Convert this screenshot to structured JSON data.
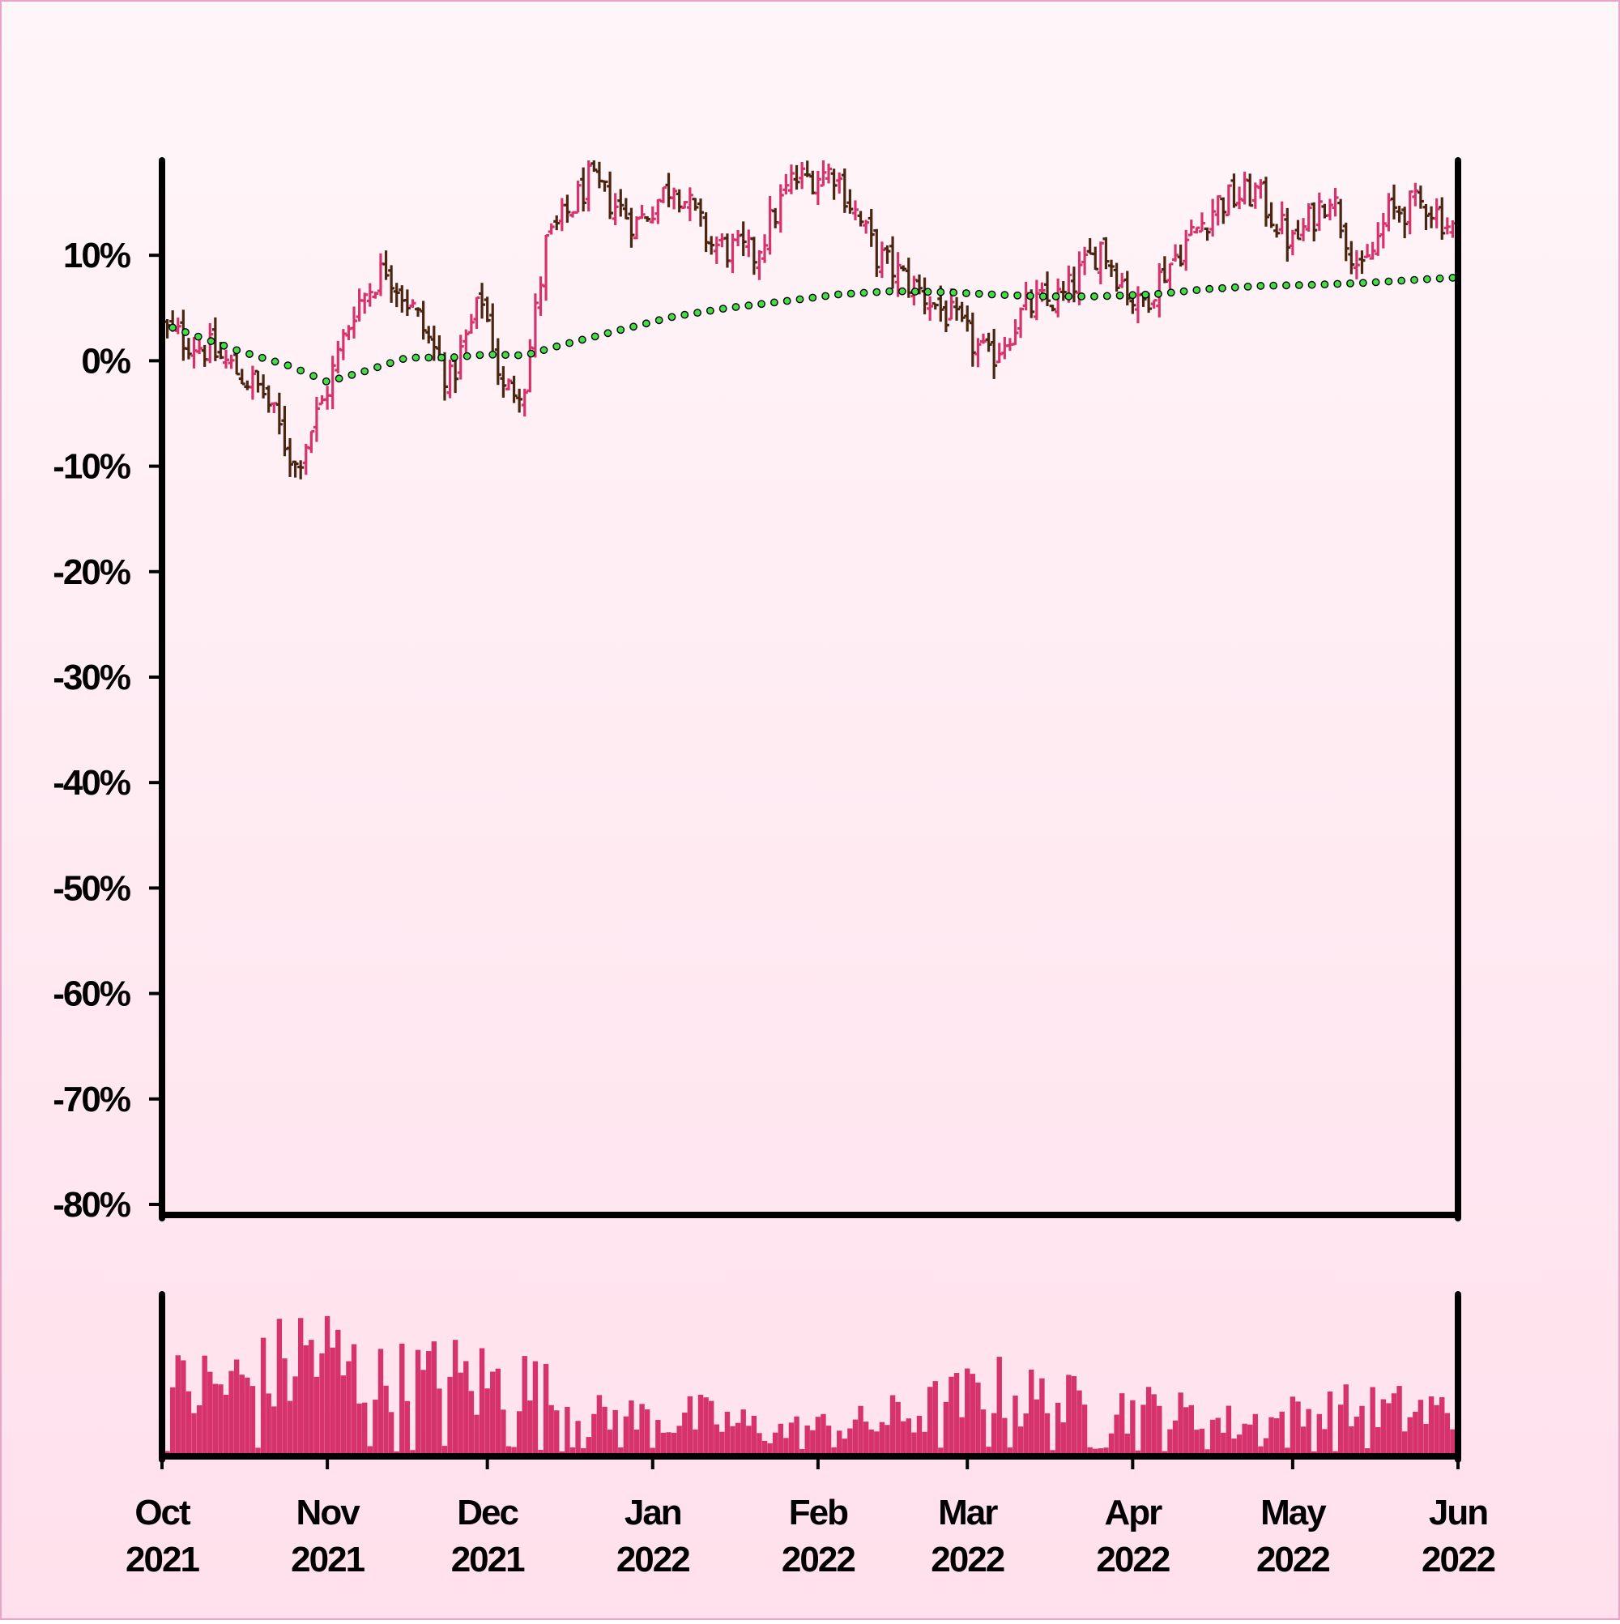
{
  "chart_data": {
    "type": "ohlc",
    "title": "",
    "xlabel": "",
    "ylabel": "",
    "price_panel": {
      "ylim": [
        -81,
        19
      ],
      "yticks": [
        {
          "value": 10,
          "label": "10%"
        },
        {
          "value": 0,
          "label": "0%"
        },
        {
          "value": -10,
          "label": "-10%"
        },
        {
          "value": -20,
          "label": "-20%"
        },
        {
          "value": -30,
          "label": "-30%"
        },
        {
          "value": -40,
          "label": "-40%"
        },
        {
          "value": -50,
          "label": "-50%"
        },
        {
          "value": -60,
          "label": "-60%"
        },
        {
          "value": -70,
          "label": "-70%"
        },
        {
          "value": -80,
          "label": "-80%"
        }
      ],
      "closes": [
        {
          "date": "2021-10-01",
          "close": 3.0
        },
        {
          "date": "2021-10-10",
          "close": 1.0
        },
        {
          "date": "2021-10-20",
          "close": -3.0
        },
        {
          "date": "2021-10-26",
          "close": -10.0
        },
        {
          "date": "2021-10-31",
          "close": -4.0
        },
        {
          "date": "2021-11-06",
          "close": 5.0
        },
        {
          "date": "2021-11-12",
          "close": 9.0
        },
        {
          "date": "2021-11-18",
          "close": 4.0
        },
        {
          "date": "2021-11-24",
          "close": -2.0
        },
        {
          "date": "2021-11-30",
          "close": 6.0
        },
        {
          "date": "2021-12-04",
          "close": -3.0
        },
        {
          "date": "2021-12-08",
          "close": -2.0
        },
        {
          "date": "2021-12-12",
          "close": 11.0
        },
        {
          "date": "2021-12-20",
          "close": 17.0
        },
        {
          "date": "2021-12-29",
          "close": 13.0
        },
        {
          "date": "2022-01-05",
          "close": 17.0
        },
        {
          "date": "2022-01-12",
          "close": 11.0
        },
        {
          "date": "2022-01-20",
          "close": 10.0
        },
        {
          "date": "2022-01-27",
          "close": 17.0
        },
        {
          "date": "2022-02-04",
          "close": 18.0
        },
        {
          "date": "2022-02-12",
          "close": 10.0
        },
        {
          "date": "2022-02-19",
          "close": 7.0
        },
        {
          "date": "2022-02-26",
          "close": 4.0
        },
        {
          "date": "2022-03-05",
          "close": 0.0
        },
        {
          "date": "2022-03-12",
          "close": 5.0
        },
        {
          "date": "2022-03-19",
          "close": 6.0
        },
        {
          "date": "2022-03-26",
          "close": 11.0
        },
        {
          "date": "2022-04-02",
          "close": 5.0
        },
        {
          "date": "2022-04-09",
          "close": 10.0
        },
        {
          "date": "2022-04-17",
          "close": 15.0
        },
        {
          "date": "2022-04-24",
          "close": 16.0
        },
        {
          "date": "2022-05-01",
          "close": 11.0
        },
        {
          "date": "2022-05-08",
          "close": 16.0
        },
        {
          "date": "2022-05-14",
          "close": 8.0
        },
        {
          "date": "2022-05-19",
          "close": 14.0
        },
        {
          "date": "2022-05-26",
          "close": 15.0
        },
        {
          "date": "2022-06-01",
          "close": 12.0
        }
      ],
      "moving_average": [
        {
          "date": "2021-10-01",
          "value": 3.5
        },
        {
          "date": "2021-10-15",
          "value": 1.0
        },
        {
          "date": "2021-10-25",
          "value": -0.5
        },
        {
          "date": "2021-11-01",
          "value": -2.0
        },
        {
          "date": "2021-11-08",
          "value": -1.0
        },
        {
          "date": "2021-11-16",
          "value": 0.3
        },
        {
          "date": "2021-11-24",
          "value": 0.3
        },
        {
          "date": "2021-12-01",
          "value": 0.6
        },
        {
          "date": "2021-12-08",
          "value": 0.5
        },
        {
          "date": "2021-12-15",
          "value": 1.5
        },
        {
          "date": "2021-12-25",
          "value": 2.8
        },
        {
          "date": "2022-01-05",
          "value": 4.2
        },
        {
          "date": "2022-01-15",
          "value": 5.0
        },
        {
          "date": "2022-01-25",
          "value": 5.6
        },
        {
          "date": "2022-02-05",
          "value": 6.3
        },
        {
          "date": "2022-02-15",
          "value": 6.6
        },
        {
          "date": "2022-02-25",
          "value": 6.5
        },
        {
          "date": "2022-03-05",
          "value": 6.3
        },
        {
          "date": "2022-03-15",
          "value": 6.1
        },
        {
          "date": "2022-03-25",
          "value": 6.1
        },
        {
          "date": "2022-04-05",
          "value": 6.3
        },
        {
          "date": "2022-04-15",
          "value": 6.8
        },
        {
          "date": "2022-04-25",
          "value": 7.1
        },
        {
          "date": "2022-05-05",
          "value": 7.2
        },
        {
          "date": "2022-05-15",
          "value": 7.4
        },
        {
          "date": "2022-05-25",
          "value": 7.7
        },
        {
          "date": "2022-06-01",
          "value": 7.9
        }
      ]
    },
    "volume_panel": {
      "note_levels": "relative volume 0-1",
      "profile": [
        {
          "date": "2021-10-01",
          "level": 0.5
        },
        {
          "date": "2021-10-20",
          "level": 0.6
        },
        {
          "date": "2021-10-29",
          "level": 0.85
        },
        {
          "date": "2021-11-10",
          "level": 0.55
        },
        {
          "date": "2021-11-25",
          "level": 0.6
        },
        {
          "date": "2021-12-08",
          "level": 0.55
        },
        {
          "date": "2021-12-20",
          "level": 0.3
        },
        {
          "date": "2022-01-10",
          "level": 0.3
        },
        {
          "date": "2022-01-25",
          "level": 0.2
        },
        {
          "date": "2022-02-10",
          "level": 0.25
        },
        {
          "date": "2022-02-25",
          "level": 0.4
        },
        {
          "date": "2022-03-05",
          "level": 0.5
        },
        {
          "date": "2022-03-20",
          "level": 0.4
        },
        {
          "date": "2022-04-05",
          "level": 0.35
        },
        {
          "date": "2022-04-20",
          "level": 0.25
        },
        {
          "date": "2022-05-10",
          "level": 0.35
        },
        {
          "date": "2022-06-01",
          "level": 0.35
        }
      ]
    },
    "xticks": [
      {
        "date": "2021-10-01",
        "month": "Oct",
        "year": "2021"
      },
      {
        "date": "2021-11-01",
        "month": "Nov",
        "year": "2021"
      },
      {
        "date": "2021-12-01",
        "month": "Dec",
        "year": "2021"
      },
      {
        "date": "2022-01-01",
        "month": "Jan",
        "year": "2022"
      },
      {
        "date": "2022-02-01",
        "month": "Feb",
        "year": "2022"
      },
      {
        "date": "2022-03-01",
        "month": "Mar",
        "year": "2022"
      },
      {
        "date": "2022-04-01",
        "month": "Apr",
        "year": "2022"
      },
      {
        "date": "2022-05-01",
        "month": "May",
        "year": "2022"
      },
      {
        "date": "2022-06-01",
        "month": "Jun",
        "year": "2022"
      }
    ],
    "colors": {
      "up": "#d6336c",
      "down": "#4a2511",
      "volume": "#d6336c",
      "ma_fill": "#44dd44",
      "ma_edge": "#000000",
      "axis": "#000000",
      "background_top": "#fff6f9",
      "background_bottom": "#ffe0ec",
      "border": "#e8a6c4"
    }
  }
}
